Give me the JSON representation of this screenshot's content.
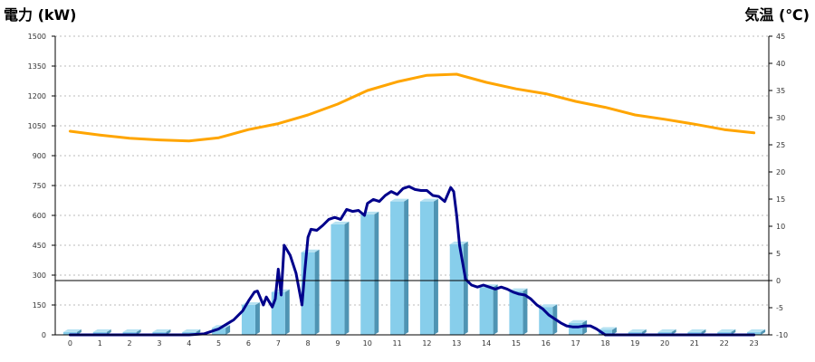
{
  "chart_data": {
    "type": "bar+line",
    "title": "",
    "ylabel_left": "電力 (kW)",
    "ylabel_right": "気温 (℃)",
    "x": [
      "0",
      "1",
      "2",
      "3",
      "4",
      "5",
      "6",
      "7",
      "8",
      "9",
      "10",
      "11",
      "12",
      "13",
      "14",
      "15",
      "16",
      "17",
      "18",
      "19",
      "20",
      "21",
      "22",
      "23"
    ],
    "ylim_left": [
      0,
      1500
    ],
    "yticks_left": [
      "0",
      "150",
      "300",
      "450",
      "600",
      "750",
      "900",
      "1050",
      "1200",
      "1350",
      "1500"
    ],
    "ylim_right": [
      -10,
      45
    ],
    "yticks_right": [
      "-10",
      "-5",
      "0",
      "5",
      "10",
      "15",
      "20",
      "25",
      "30",
      "35",
      "40",
      "45"
    ],
    "grid": true,
    "series": [
      {
        "kind": "bar",
        "axis": "left",
        "values": [
          14,
          14,
          14,
          14,
          14,
          35,
          150,
          215,
          415,
          555,
          605,
          670,
          670,
          455,
          240,
          220,
          140,
          60,
          25,
          14,
          14,
          14,
          14,
          14
        ]
      },
      {
        "kind": "line",
        "axis": "left",
        "x": [
          0,
          1,
          2,
          3,
          4,
          4.5,
          5,
          5.5,
          5.8,
          6,
          6.2,
          6.3,
          6.5,
          6.6,
          6.8,
          6.9,
          7.0,
          7.1,
          7.2,
          7.4,
          7.6,
          7.8,
          7.9,
          8.0,
          8.1,
          8.3,
          8.5,
          8.7,
          8.9,
          9.1,
          9.3,
          9.5,
          9.7,
          9.9,
          10.0,
          10.2,
          10.4,
          10.6,
          10.8,
          11.0,
          11.2,
          11.4,
          11.6,
          11.8,
          12.0,
          12.2,
          12.4,
          12.6,
          12.8,
          12.9,
          13.0,
          13.1,
          13.3,
          13.5,
          13.7,
          13.9,
          14.1,
          14.3,
          14.5,
          14.7,
          14.9,
          15.1,
          15.3,
          15.5,
          15.7,
          15.9,
          16.1,
          16.3,
          16.5,
          16.7,
          16.9,
          17.1,
          17.3,
          17.5,
          17.7,
          18.0,
          18.5,
          19,
          20,
          21,
          22,
          23
        ],
        "values": [
          0,
          0,
          0,
          0,
          0,
          5,
          30,
          75,
          120,
          170,
          215,
          220,
          150,
          190,
          140,
          180,
          330,
          200,
          450,
          400,
          310,
          150,
          330,
          490,
          530,
          525,
          550,
          580,
          590,
          580,
          630,
          620,
          625,
          600,
          660,
          680,
          670,
          700,
          720,
          705,
          735,
          745,
          730,
          725,
          725,
          700,
          695,
          670,
          740,
          720,
          600,
          450,
          280,
          250,
          240,
          250,
          240,
          230,
          240,
          230,
          215,
          205,
          200,
          180,
          150,
          130,
          100,
          80,
          60,
          45,
          40,
          40,
          45,
          45,
          30,
          0,
          0,
          0,
          0,
          0,
          0,
          0
        ]
      },
      {
        "kind": "line",
        "axis": "right",
        "x": [
          0,
          1,
          2,
          3,
          4,
          5,
          6,
          7,
          8,
          9,
          10,
          11,
          12,
          13,
          14,
          15,
          16,
          17,
          18,
          19,
          20,
          21,
          22,
          23
        ],
        "values": [
          27.5,
          26.8,
          26.2,
          25.9,
          25.7,
          26.3,
          27.8,
          28.9,
          30.5,
          32.5,
          35.0,
          36.6,
          37.8,
          38.0,
          36.5,
          35.3,
          34.4,
          33.0,
          31.9,
          30.5,
          29.7,
          28.8,
          27.8,
          27.2
        ]
      }
    ],
    "colors": {
      "bar_front": "#87ceeb",
      "bar_side": "#4f94b3",
      "bar_top": "#b6e2f2",
      "power_line": "#00008b",
      "temp_line": "#ffa500",
      "ylabel_left": "#1f6fb5",
      "ylabel_right": "#f28c28",
      "grid": "#bbbbbb"
    }
  }
}
